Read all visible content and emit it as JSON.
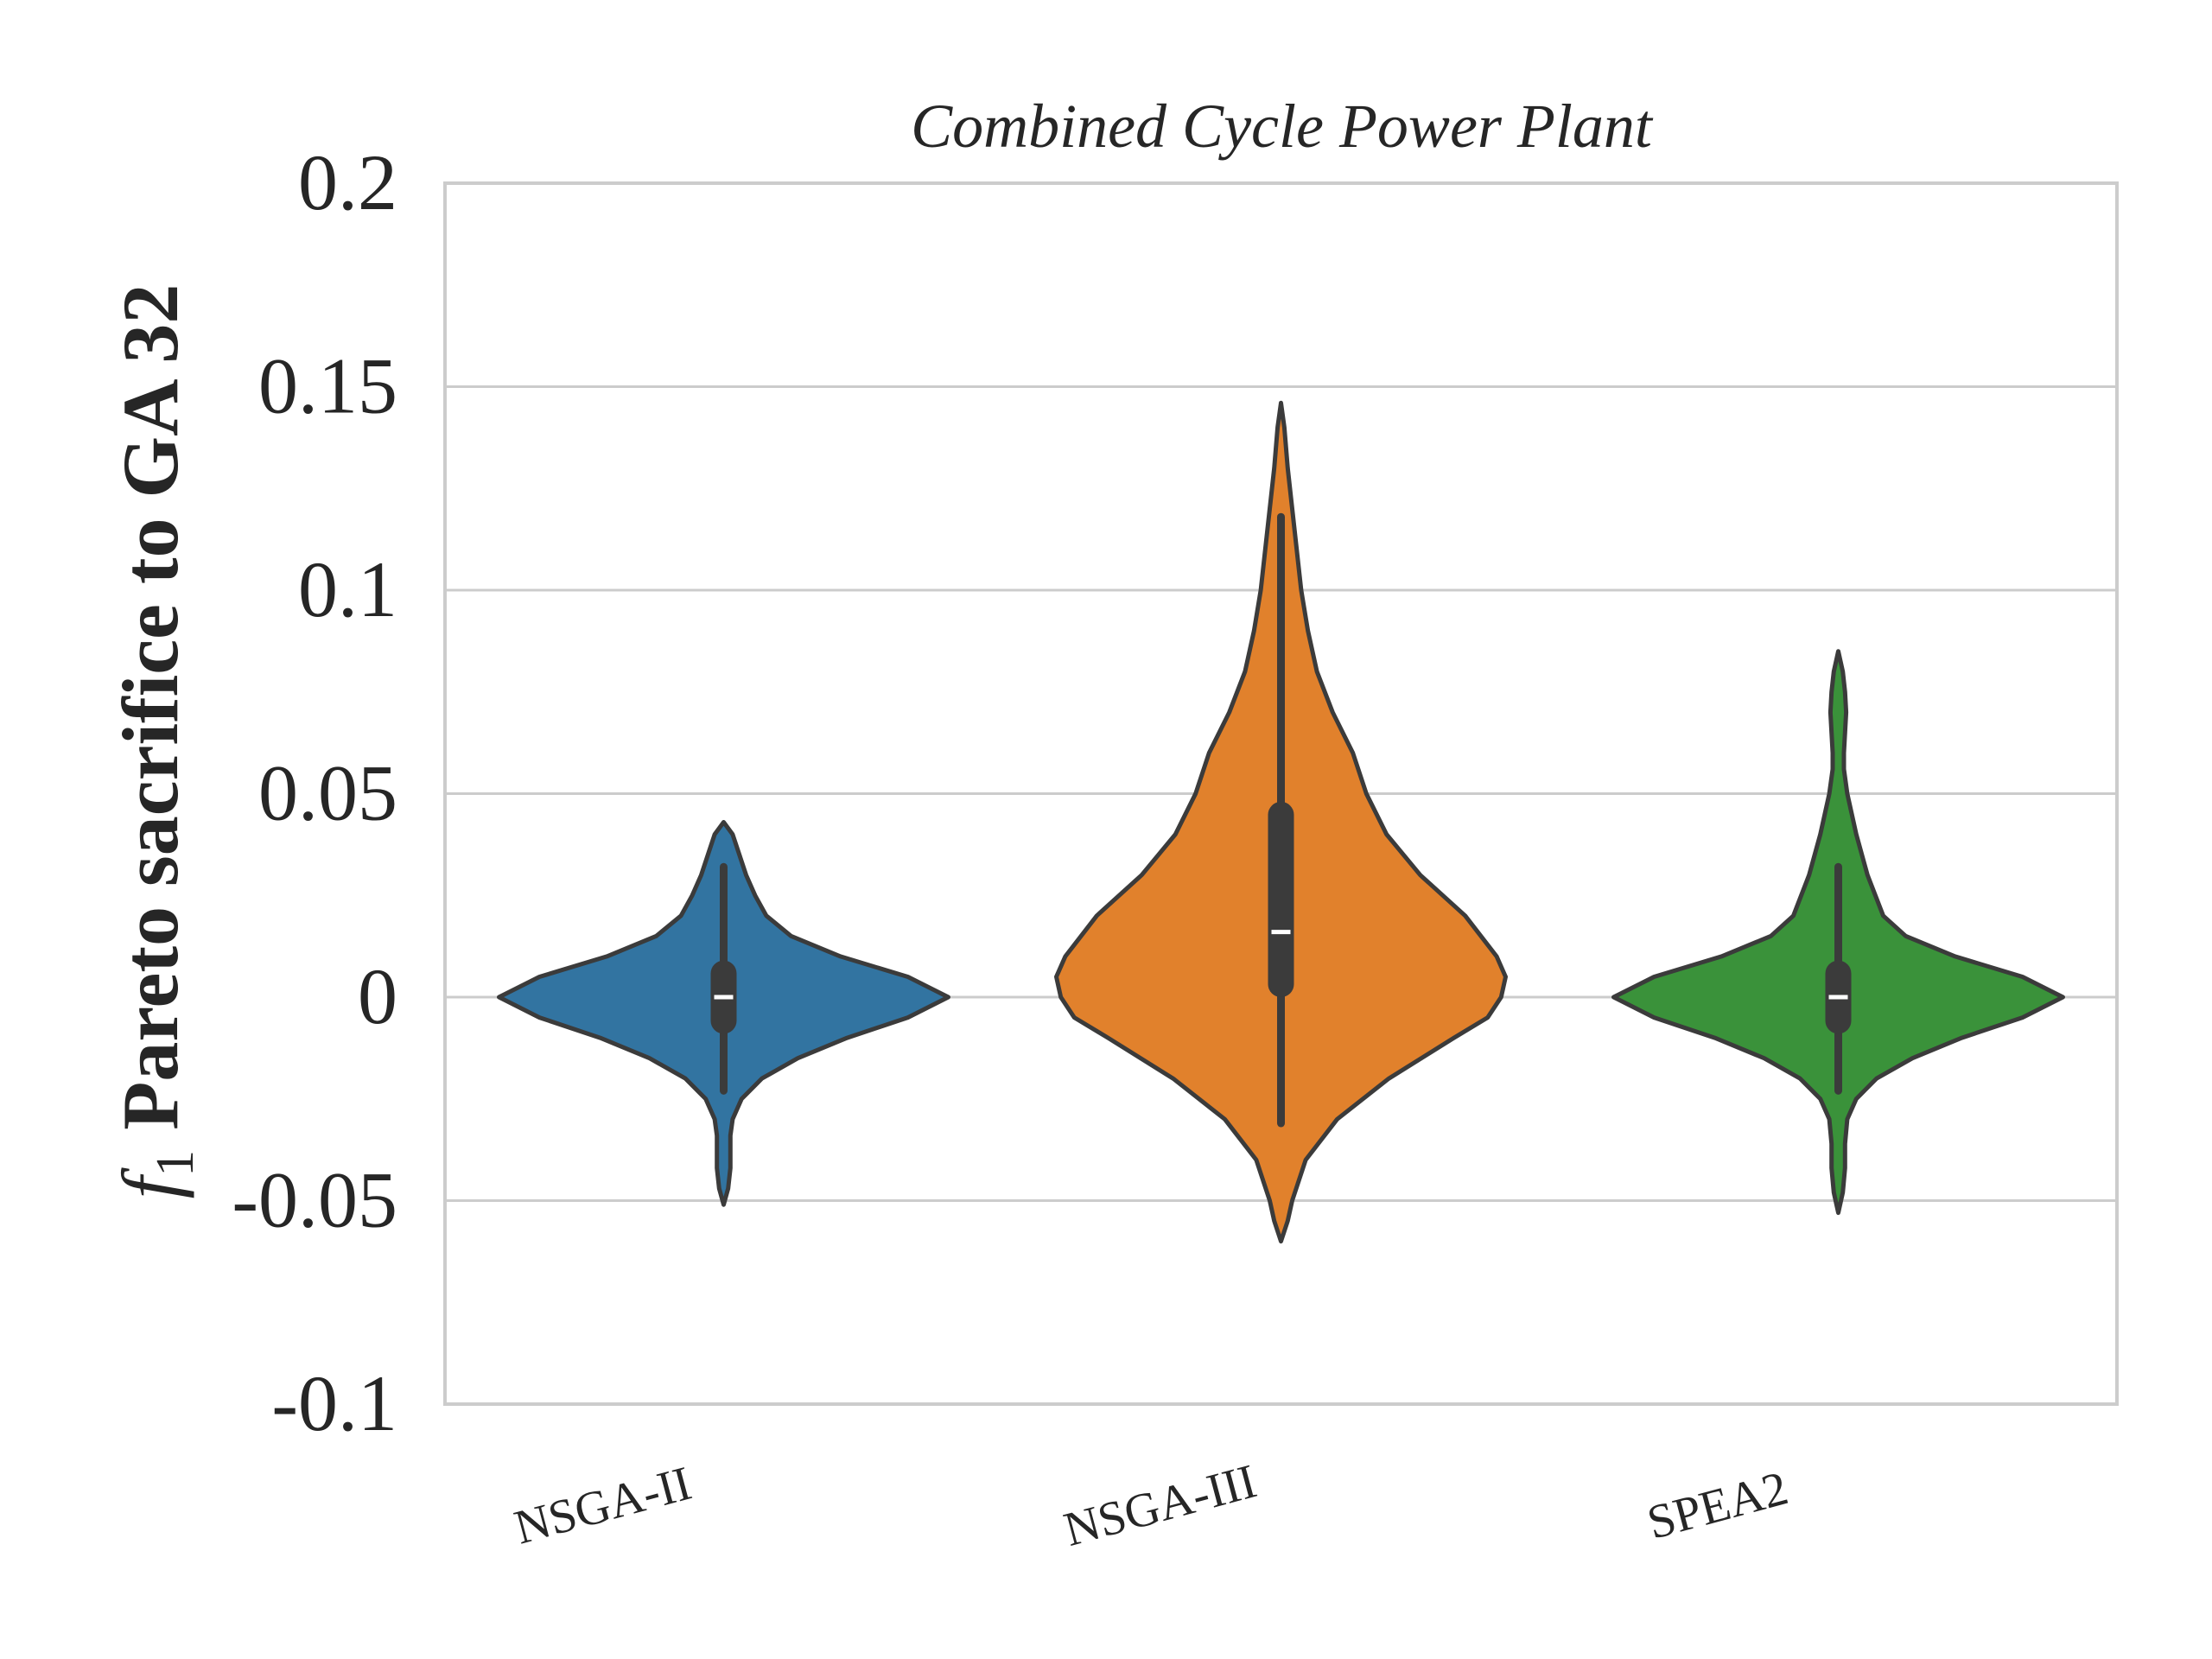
{
  "chart_data": {
    "type": "violin",
    "title": "Combined Cycle Power Plant",
    "xlabel": "",
    "ylabel": {
      "symbol": "f",
      "subscript": "1",
      "text": " Pareto sacrifice to GA 32"
    },
    "ylim": [
      -0.1,
      0.2
    ],
    "yticks": [
      -0.1,
      -0.05,
      0,
      0.05,
      0.1,
      0.15,
      0.2
    ],
    "ytick_labels": [
      "-0.1",
      "-0.05",
      "0",
      "0.05",
      "0.1",
      "0.15",
      "0.2"
    ],
    "grid": true,
    "categories": [
      "NSGA-II",
      "NSGA-III",
      "SPEA2"
    ],
    "series": [
      {
        "category": "NSGA-II",
        "color": "#3274a1",
        "min": -0.051,
        "max": 0.043,
        "whisker_low": -0.023,
        "whisker_high": 0.032,
        "q1": -0.009,
        "q3": 0.009,
        "median": 0.0,
        "density_profile": [
          [
            -0.051,
            0.0
          ],
          [
            -0.047,
            0.02
          ],
          [
            -0.042,
            0.03
          ],
          [
            -0.038,
            0.03
          ],
          [
            -0.034,
            0.03
          ],
          [
            -0.03,
            0.04
          ],
          [
            -0.025,
            0.08
          ],
          [
            -0.02,
            0.17
          ],
          [
            -0.015,
            0.33
          ],
          [
            -0.01,
            0.55
          ],
          [
            -0.005,
            0.82
          ],
          [
            0.0,
            1.0
          ],
          [
            0.005,
            0.82
          ],
          [
            0.01,
            0.52
          ],
          [
            0.015,
            0.3
          ],
          [
            0.02,
            0.19
          ],
          [
            0.025,
            0.14
          ],
          [
            0.03,
            0.1
          ],
          [
            0.035,
            0.07
          ],
          [
            0.04,
            0.04
          ],
          [
            0.043,
            0.0
          ]
        ]
      },
      {
        "category": "NSGA-III",
        "color": "#e1812c",
        "min": -0.06,
        "max": 0.146,
        "whisker_low": -0.031,
        "whisker_high": 0.118,
        "q1": 0.0,
        "q3": 0.048,
        "median": 0.016,
        "density_profile": [
          [
            -0.06,
            0.0
          ],
          [
            -0.055,
            0.03
          ],
          [
            -0.05,
            0.05
          ],
          [
            -0.04,
            0.11
          ],
          [
            -0.03,
            0.25
          ],
          [
            -0.02,
            0.48
          ],
          [
            -0.01,
            0.77
          ],
          [
            -0.005,
            0.92
          ],
          [
            0.0,
            0.98
          ],
          [
            0.005,
            1.0
          ],
          [
            0.01,
            0.96
          ],
          [
            0.02,
            0.82
          ],
          [
            0.03,
            0.62
          ],
          [
            0.04,
            0.47
          ],
          [
            0.05,
            0.38
          ],
          [
            0.06,
            0.32
          ],
          [
            0.07,
            0.23
          ],
          [
            0.08,
            0.16
          ],
          [
            0.09,
            0.12
          ],
          [
            0.1,
            0.09
          ],
          [
            0.11,
            0.07
          ],
          [
            0.12,
            0.05
          ],
          [
            0.13,
            0.03
          ],
          [
            0.14,
            0.015
          ],
          [
            0.146,
            0.0
          ]
        ]
      },
      {
        "category": "SPEA2",
        "color": "#3a923a",
        "min": -0.053,
        "max": 0.085,
        "whisker_low": -0.023,
        "whisker_high": 0.032,
        "q1": -0.009,
        "q3": 0.009,
        "median": 0.0,
        "density_profile": [
          [
            -0.053,
            0.0
          ],
          [
            -0.048,
            0.02
          ],
          [
            -0.042,
            0.03
          ],
          [
            -0.036,
            0.03
          ],
          [
            -0.03,
            0.04
          ],
          [
            -0.025,
            0.08
          ],
          [
            -0.02,
            0.17
          ],
          [
            -0.015,
            0.33
          ],
          [
            -0.01,
            0.55
          ],
          [
            -0.005,
            0.82
          ],
          [
            0.0,
            1.0
          ],
          [
            0.005,
            0.82
          ],
          [
            0.01,
            0.52
          ],
          [
            0.015,
            0.3
          ],
          [
            0.02,
            0.2
          ],
          [
            0.03,
            0.13
          ],
          [
            0.04,
            0.08
          ],
          [
            0.05,
            0.04
          ],
          [
            0.056,
            0.025
          ],
          [
            0.06,
            0.025
          ],
          [
            0.065,
            0.03
          ],
          [
            0.07,
            0.035
          ],
          [
            0.075,
            0.03
          ],
          [
            0.08,
            0.02
          ],
          [
            0.085,
            0.0
          ]
        ]
      }
    ],
    "colors": {
      "grid": "#cccccc",
      "frame": "#cccccc",
      "outline": "#3b3b3b",
      "box": "#3b3b3b",
      "median": "#ffffff",
      "text": "#262626"
    }
  }
}
